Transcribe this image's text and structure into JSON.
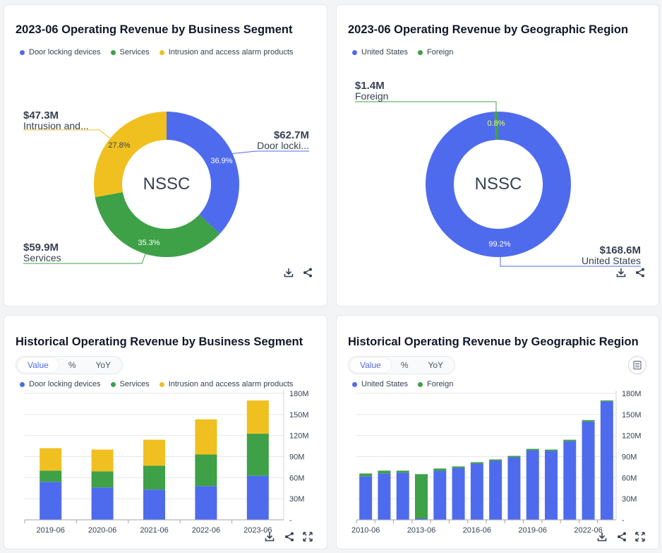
{
  "ticker": "NSSC",
  "colors": {
    "blue": "#4f6bed",
    "green": "#3ea047",
    "yellow": "#f0c020"
  },
  "cards": {
    "segment_donut": {
      "title": "2023-06 Operating Revenue by Business Segment"
    },
    "region_donut": {
      "title": "2023-06 Operating Revenue by Geographic Region"
    },
    "segment_history": {
      "title": "Historical Operating Revenue by Business Segment"
    },
    "region_history": {
      "title": "Historical Operating Revenue by Geographic Region"
    }
  },
  "toggle": {
    "value": "Value",
    "percent": "%",
    "yoy": "YoY"
  },
  "segment_legend": [
    "Door locking devices",
    "Services",
    "Intrusion and access alarm products"
  ],
  "region_legend": [
    "United States",
    "Foreign"
  ],
  "segment_callouts": {
    "door": {
      "value": "$62.7M",
      "label": "Door locki..."
    },
    "services": {
      "value": "$59.9M",
      "label": "Services"
    },
    "intrusion": {
      "value": "$47.3M",
      "label": "Intrusion and..."
    }
  },
  "region_callouts": {
    "us": {
      "value": "$168.6M",
      "label": "United States"
    },
    "foreign": {
      "value": "$1.4M",
      "label": "Foreign"
    }
  },
  "chart_data": [
    {
      "type": "pie",
      "title": "2023-06 Operating Revenue by Business Segment",
      "center_label": "NSSC",
      "categories": [
        "Door locking devices",
        "Services",
        "Intrusion and access alarm products"
      ],
      "values": [
        62.7,
        59.9,
        47.3
      ],
      "percent_labels": [
        "36.9%",
        "35.3%",
        "27.8%"
      ],
      "colors": [
        "#4f6bed",
        "#3ea047",
        "#f0c020"
      ]
    },
    {
      "type": "pie",
      "title": "2023-06 Operating Revenue by Geographic Region",
      "center_label": "NSSC",
      "categories": [
        "United States",
        "Foreign"
      ],
      "values": [
        168.6,
        1.4
      ],
      "percent_labels": [
        "99.2%",
        "0.8%"
      ],
      "colors": [
        "#4f6bed",
        "#3ea047"
      ]
    },
    {
      "type": "bar",
      "stacked": true,
      "title": "Historical Operating Revenue by Business Segment",
      "categories": [
        "2019-06",
        "2020-06",
        "2021-06",
        "2022-06",
        "2023-06"
      ],
      "series": [
        {
          "name": "Door locking devices",
          "color": "#4f6bed",
          "values": [
            54,
            46,
            43,
            48,
            62.7
          ]
        },
        {
          "name": "Services",
          "color": "#3ea047",
          "values": [
            16,
            23,
            34,
            45,
            59.9
          ]
        },
        {
          "name": "Intrusion and access alarm products",
          "color": "#f0c020",
          "values": [
            32,
            31,
            37,
            50,
            47.3
          ]
        }
      ],
      "x_tick_labels": [
        "2019-06",
        "2020-06",
        "2021-06",
        "2022-06",
        "2023-06"
      ],
      "y_ticks": [
        0,
        30,
        60,
        90,
        120,
        150,
        180
      ],
      "y_tick_labels": [
        "-",
        "30M",
        "60M",
        "90M",
        "120M",
        "150M",
        "180M"
      ],
      "ylim": [
        0,
        180
      ],
      "grid": true,
      "y_axis_side": "right"
    },
    {
      "type": "bar",
      "stacked": true,
      "title": "Historical Operating Revenue by Geographic Region",
      "categories": [
        "2010-06",
        "2011-06",
        "2012-06",
        "2013-06",
        "2014-06",
        "2015-06",
        "2016-06",
        "2017-06",
        "2018-06",
        "2019-06",
        "2020-06",
        "2021-06",
        "2022-06",
        "2023-06"
      ],
      "series": [
        {
          "name": "United States",
          "color": "#4f6bed",
          "values": [
            62,
            66,
            67,
            2,
            70,
            74,
            80,
            84,
            89,
            99,
            98,
            112,
            140,
            168.6
          ]
        },
        {
          "name": "Foreign",
          "color": "#3ea047",
          "values": [
            4,
            4,
            3,
            63,
            3,
            2,
            2,
            2,
            2,
            2,
            2,
            2,
            2,
            1.4
          ]
        }
      ],
      "x_tick_labels": [
        "2010-06",
        "2013-06",
        "2016-06",
        "2019-06",
        "2022-06"
      ],
      "y_ticks": [
        0,
        30,
        60,
        90,
        120,
        150,
        180
      ],
      "y_tick_labels": [
        "-",
        "30M",
        "60M",
        "90M",
        "120M",
        "150M",
        "180M"
      ],
      "ylim": [
        0,
        180
      ],
      "grid": true,
      "y_axis_side": "right"
    }
  ]
}
